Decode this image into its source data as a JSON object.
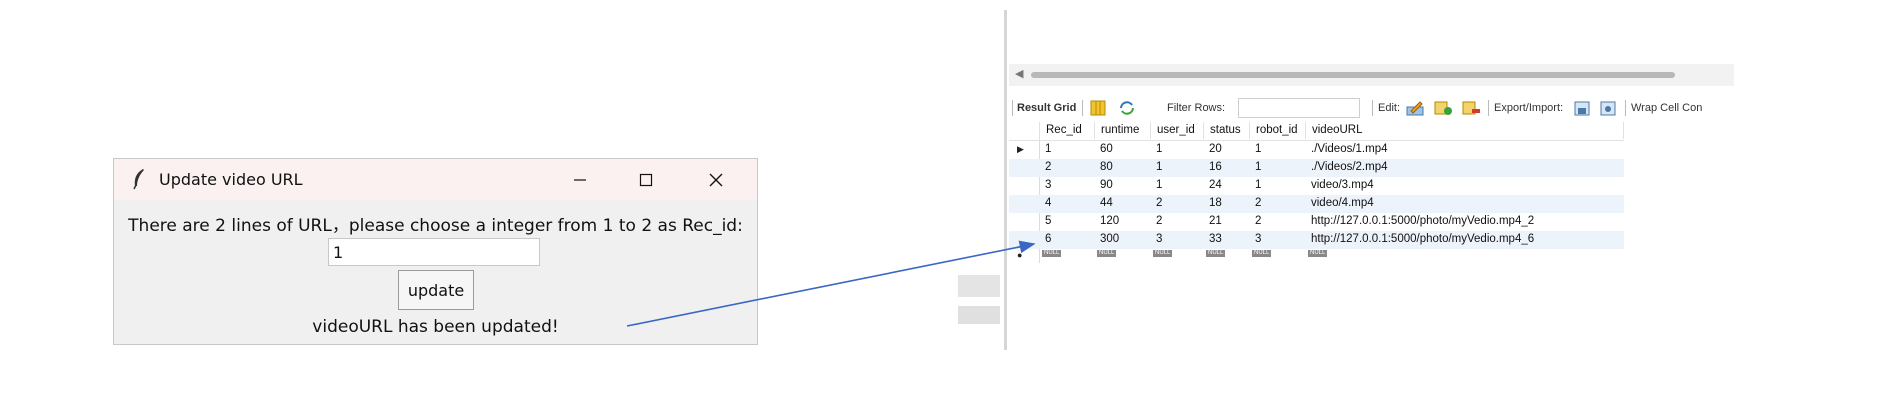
{
  "dialog": {
    "title": "Update video URL",
    "prompt": "There are 2 lines of URL，please choose a integer from 1 to 2 as Rec_id:",
    "input_value": "1",
    "update_label": "update",
    "status": "videoURL has been updated!"
  },
  "toolbar": {
    "result_grid": "Result Grid",
    "filter_rows": "Filter Rows:",
    "edit": "Edit:",
    "export_import": "Export/Import:",
    "wrap_cell": "Wrap Cell Con"
  },
  "grid": {
    "columns": [
      "Rec_id",
      "runtime",
      "user_id",
      "status",
      "robot_id",
      "videoURL"
    ],
    "rows": [
      [
        "1",
        "60",
        "1",
        "20",
        "1",
        "./Videos/1.mp4"
      ],
      [
        "2",
        "80",
        "1",
        "16",
        "1",
        "./Videos/2.mp4"
      ],
      [
        "3",
        "90",
        "1",
        "24",
        "1",
        "video/3.mp4"
      ],
      [
        "4",
        "44",
        "2",
        "18",
        "2",
        "video/4.mp4"
      ],
      [
        "5",
        "120",
        "2",
        "21",
        "2",
        "http://127.0.0.1:5000/photo/myVedio.mp4_2"
      ],
      [
        "6",
        "300",
        "3",
        "33",
        "3",
        "http://127.0.0.1:5000/photo/myVedio.mp4_6"
      ]
    ],
    "null_label": "NULL"
  },
  "colors": {
    "arrow": "#3a66c4",
    "row_alt": "#edf3fb",
    "title_bar": "#fbf1f1",
    "dialog_bg": "#f0f0f0"
  }
}
